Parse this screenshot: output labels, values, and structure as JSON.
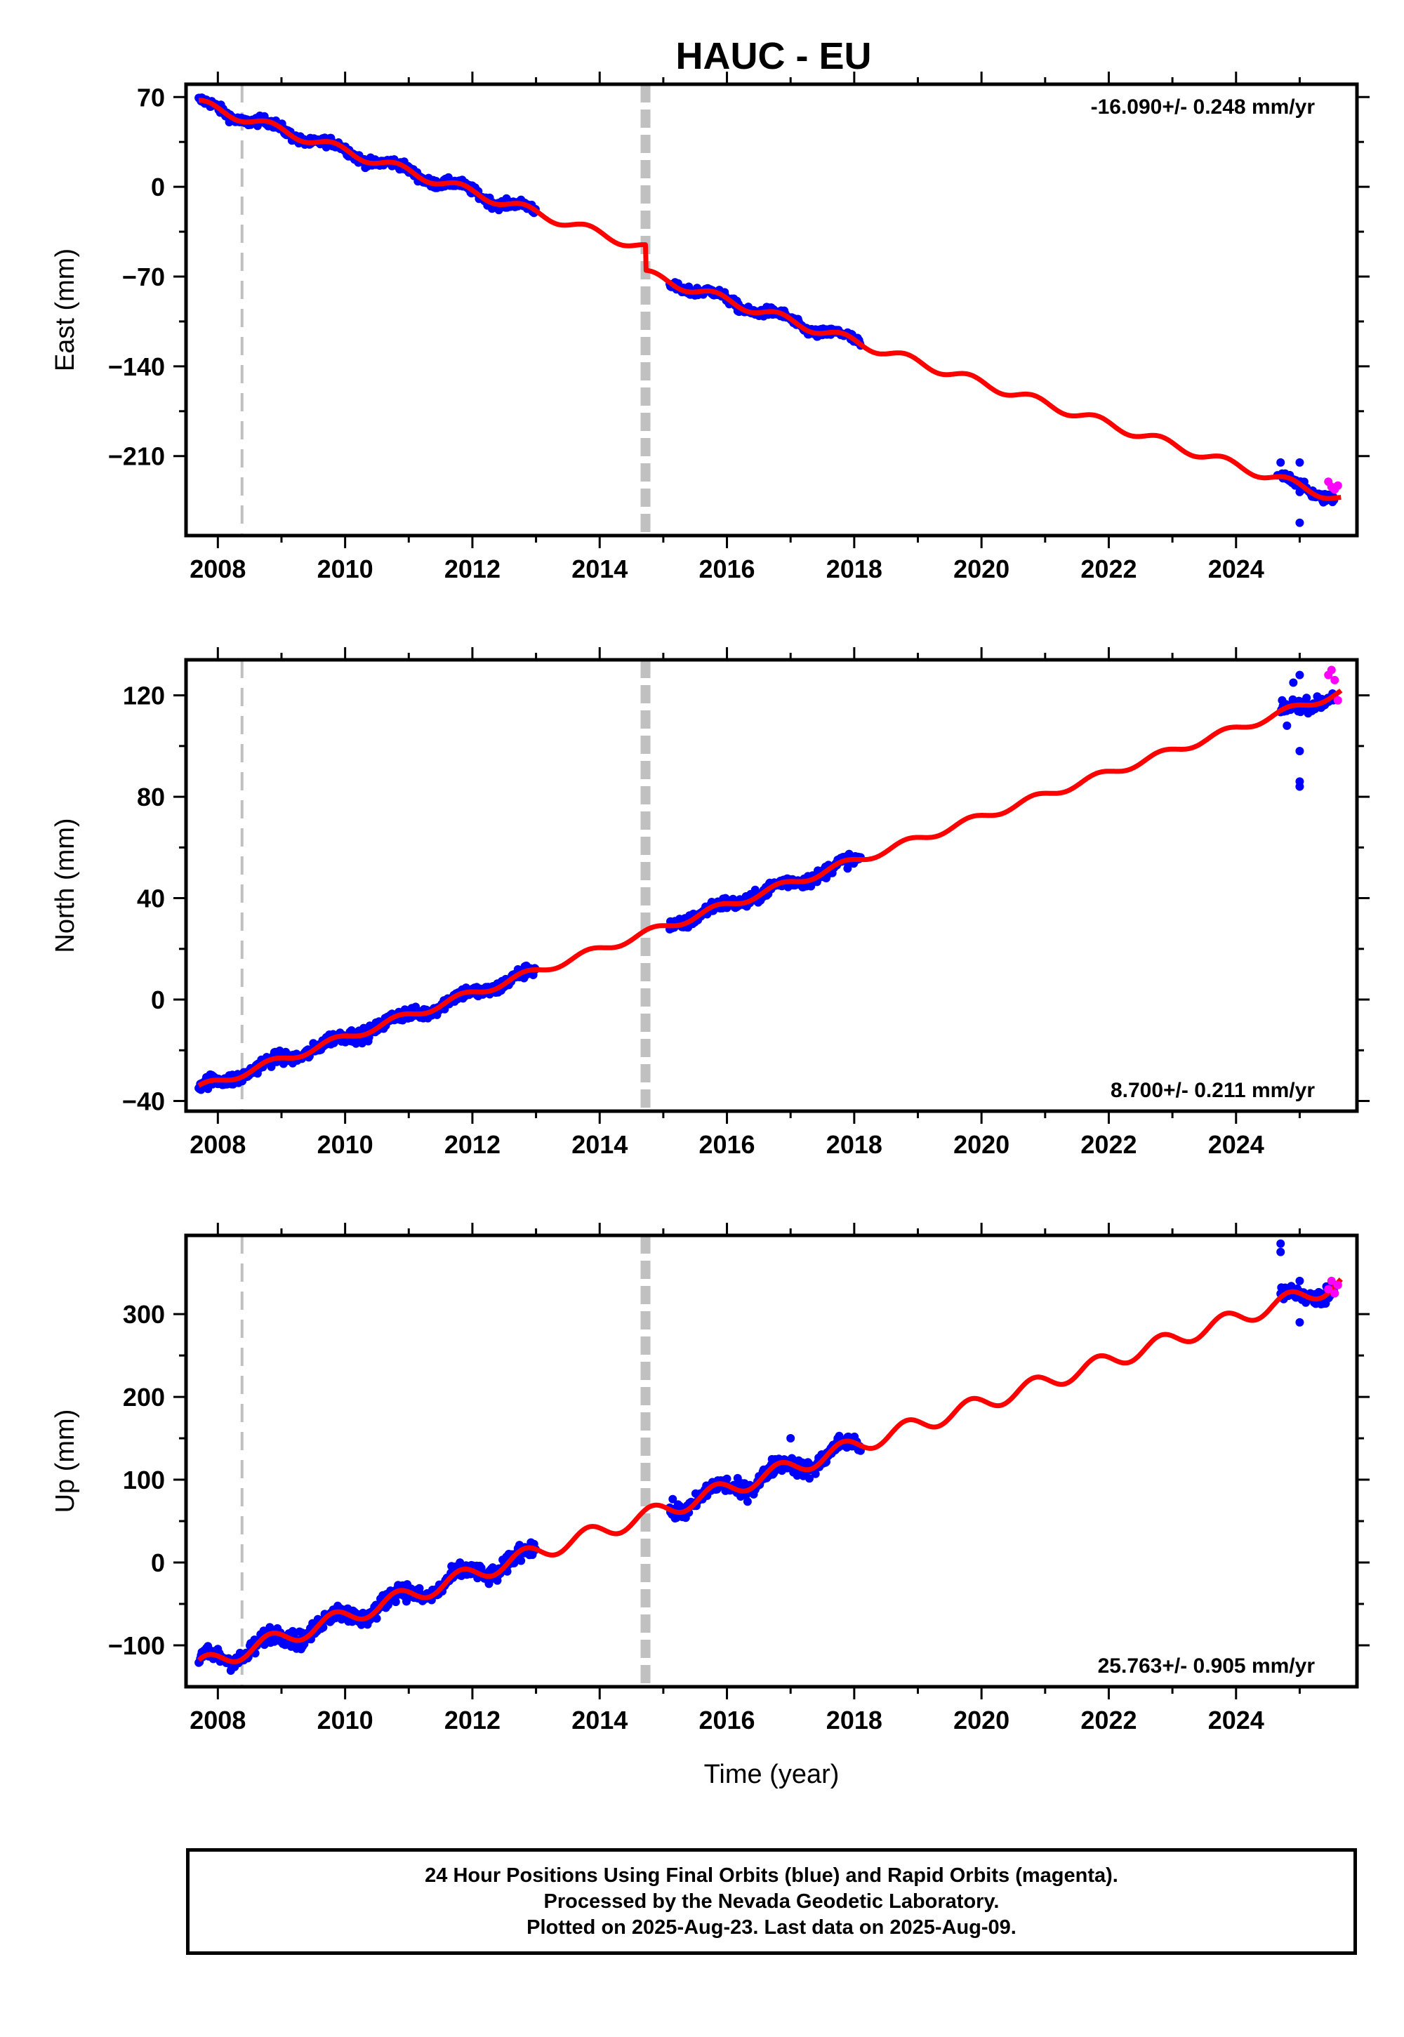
{
  "title": "HAUC - EU",
  "xlabel": "Time (year)",
  "footer": {
    "line1": "24 Hour Positions Using Final Orbits (blue) and Rapid Orbits (magenta).",
    "line2": "Processed by the Nevada Geodetic Laboratory.",
    "line3": "Plotted on 2025-Aug-23. Last data on 2025-Aug-09."
  },
  "colors": {
    "final": "#0000ff",
    "rapid": "#ff00ff",
    "model": "#ff0000",
    "event": "#c0c0c0"
  },
  "chart_data": [
    {
      "type": "scatter",
      "name": "east",
      "ylabel": "East (mm)",
      "rate": "-16.090+/- 0.248 mm/yr",
      "rate_position": "top-right",
      "xlim": [
        2007.5,
        2025.9
      ],
      "ylim": [
        -272,
        80
      ],
      "yticks": [
        70,
        0,
        -70,
        -140,
        -210
      ],
      "ytick_labels": [
        "70",
        "0",
        "−70",
        "−140",
        "−210"
      ],
      "xticks": [
        2008,
        2010,
        2012,
        2014,
        2016,
        2018,
        2020,
        2022,
        2024
      ],
      "events": [
        {
          "x": 2008.38,
          "style": "dashed-thin"
        },
        {
          "x": 2014.72,
          "style": "dashed-thick"
        }
      ],
      "trend": {
        "slope": -16.09,
        "intercept": 65,
        "x0": 2007.7,
        "annual_amp": 3.5,
        "breaks": [
          {
            "x": 2014.72,
            "offset": -20
          }
        ],
        "x_range": [
          2007.7,
          2025.65
        ]
      },
      "final_segments": [
        [
          2007.7,
          2013.0
        ],
        [
          2015.1,
          2018.1
        ],
        [
          2024.7,
          2025.55
        ]
      ],
      "final_scatter": 3.5,
      "outliers": [
        {
          "x": 2024.65,
          "y": -225
        },
        {
          "x": 2024.7,
          "y": -215
        },
        {
          "x": 2024.8,
          "y": -228
        },
        {
          "x": 2025.0,
          "y": -215
        },
        {
          "x": 2025.0,
          "y": -238
        },
        {
          "x": 2025.0,
          "y": -262
        }
      ],
      "rapid_points": [
        [
          2025.45,
          -230
        ],
        [
          2025.5,
          -234
        ],
        [
          2025.55,
          -236
        ],
        [
          2025.6,
          -233
        ]
      ]
    },
    {
      "type": "scatter",
      "name": "north",
      "ylabel": "North (mm)",
      "rate": "8.700+/- 0.211 mm/yr",
      "rate_position": "bottom-right",
      "xlim": [
        2007.5,
        2025.9
      ],
      "ylim": [
        -44,
        134
      ],
      "yticks": [
        120,
        80,
        40,
        0,
        -40
      ],
      "ytick_labels": [
        "120",
        "80",
        "40",
        "0",
        "−40"
      ],
      "xticks": [
        2008,
        2010,
        2012,
        2014,
        2016,
        2018,
        2020,
        2022,
        2024
      ],
      "events": [
        {
          "x": 2008.38,
          "style": "dashed-thin"
        },
        {
          "x": 2014.72,
          "style": "dashed-thick"
        }
      ],
      "trend": {
        "slope": 8.7,
        "intercept": -35,
        "x0": 2007.7,
        "annual_amp": 1.5,
        "breaks": [],
        "x_range": [
          2007.7,
          2025.65
        ]
      },
      "final_segments": [
        [
          2007.7,
          2013.0
        ],
        [
          2015.1,
          2018.1
        ],
        [
          2024.7,
          2025.55
        ]
      ],
      "final_scatter": 2.5,
      "outliers": [
        {
          "x": 2024.8,
          "y": 108
        },
        {
          "x": 2025.0,
          "y": 98
        },
        {
          "x": 2025.0,
          "y": 86
        },
        {
          "x": 2025.0,
          "y": 84
        },
        {
          "x": 2025.0,
          "y": 128
        },
        {
          "x": 2024.9,
          "y": 125
        }
      ],
      "rapid_points": [
        [
          2025.45,
          128
        ],
        [
          2025.5,
          130
        ],
        [
          2025.55,
          126
        ],
        [
          2025.6,
          118
        ]
      ]
    },
    {
      "type": "scatter",
      "name": "up",
      "ylabel": "Up (mm)",
      "rate": "25.763+/- 0.905 mm/yr",
      "rate_position": "bottom-right",
      "xlim": [
        2007.5,
        2025.9
      ],
      "ylim": [
        -150,
        395
      ],
      "yticks": [
        300,
        200,
        100,
        0,
        -100
      ],
      "ytick_labels": [
        "300",
        "200",
        "100",
        "0",
        "−100"
      ],
      "xticks": [
        2008,
        2010,
        2012,
        2014,
        2016,
        2018,
        2020,
        2022,
        2024
      ],
      "events": [
        {
          "x": 2008.38,
          "style": "dashed-thin"
        },
        {
          "x": 2014.72,
          "style": "dashed-thick"
        }
      ],
      "trend": {
        "slope": 25.763,
        "intercept": -125,
        "x0": 2007.7,
        "annual_amp": 10,
        "breaks": [],
        "x_range": [
          2007.7,
          2025.65
        ]
      },
      "final_segments": [
        [
          2007.7,
          2013.0
        ],
        [
          2015.1,
          2018.1
        ],
        [
          2024.7,
          2025.55
        ]
      ],
      "final_scatter": 10,
      "outliers": [
        {
          "x": 2024.7,
          "y": 385
        },
        {
          "x": 2024.7,
          "y": 375
        },
        {
          "x": 2025.0,
          "y": 290
        },
        {
          "x": 2025.0,
          "y": 340
        },
        {
          "x": 2017.0,
          "y": 150
        },
        {
          "x": 2015.3,
          "y": 55
        }
      ],
      "rapid_points": [
        [
          2025.45,
          330
        ],
        [
          2025.5,
          340
        ],
        [
          2025.55,
          325
        ],
        [
          2025.6,
          335
        ]
      ]
    }
  ]
}
